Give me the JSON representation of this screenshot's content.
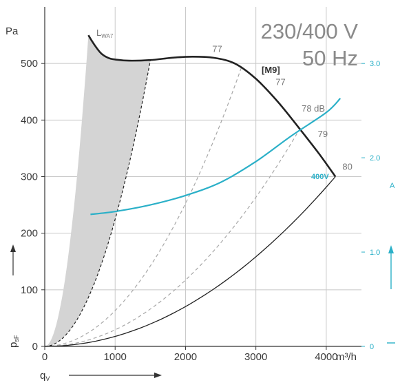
{
  "chart_data": {
    "type": "line",
    "title": "230/400 V",
    "subtitle": "50 Hz",
    "ylabel_top": "Pa",
    "ylabel_side": "p",
    "ylabel_side_sub": "sF",
    "xlabel_left": "q",
    "xlabel_left_sub": "V",
    "xunit": "m³/h",
    "right_unit": "A",
    "xlim": [
      0,
      4500
    ],
    "ylim": [
      0,
      600
    ],
    "right_ylim": [
      0,
      3.6
    ],
    "xticks": [
      "0",
      "1000",
      "2000",
      "3000",
      "4000"
    ],
    "yticks": [
      "0",
      "100",
      "200",
      "300",
      "400",
      "500"
    ],
    "right_ticks": [
      "0",
      "1.0",
      "2.0",
      "3.0"
    ],
    "grid": true,
    "model_label": "[M9]",
    "lwa_label": "L",
    "lwa_sub": "WA7",
    "current_curve_label": "400V",
    "fan_curve": {
      "name": "[M9]",
      "x": [
        620,
        700,
        800,
        900,
        1000,
        1200,
        1500,
        1800,
        2100,
        2400,
        2700,
        3000,
        3300,
        3600,
        3900,
        4130
      ],
      "y": [
        550,
        534,
        518,
        510,
        507,
        505,
        506,
        510,
        512,
        510,
        500,
        473,
        434,
        388,
        340,
        300
      ]
    },
    "current_curve": {
      "name": "400V",
      "x": [
        650,
        1000,
        1500,
        2000,
        2500,
        3000,
        3500,
        4000,
        4200
      ],
      "y": [
        1.4,
        1.43,
        1.5,
        1.6,
        1.74,
        1.96,
        2.23,
        2.48,
        2.63
      ]
    },
    "system_curves": [
      {
        "x": [
          0,
          1500
        ],
        "y": [
          0,
          505
        ]
      },
      {
        "x": [
          0,
          2800
        ],
        "y": [
          0,
          495
        ]
      },
      {
        "x": [
          0,
          3650
        ],
        "y": [
          0,
          390
        ]
      },
      {
        "x": [
          0,
          4130
        ],
        "y": [
          0,
          300
        ]
      }
    ],
    "shaded_region": {
      "left": {
        "x": [
          0,
          620
        ],
        "y": [
          0,
          550
        ]
      }
    },
    "db_labels": [
      {
        "text": "77",
        "x": 2380,
        "y": 520
      },
      {
        "text": "77",
        "x": 3280,
        "y": 462
      },
      {
        "text": "78 dB",
        "x": 3650,
        "y": 415
      },
      {
        "text": "79",
        "x": 3880,
        "y": 370
      },
      {
        "text": "80",
        "x": 4230,
        "y": 312
      }
    ]
  }
}
